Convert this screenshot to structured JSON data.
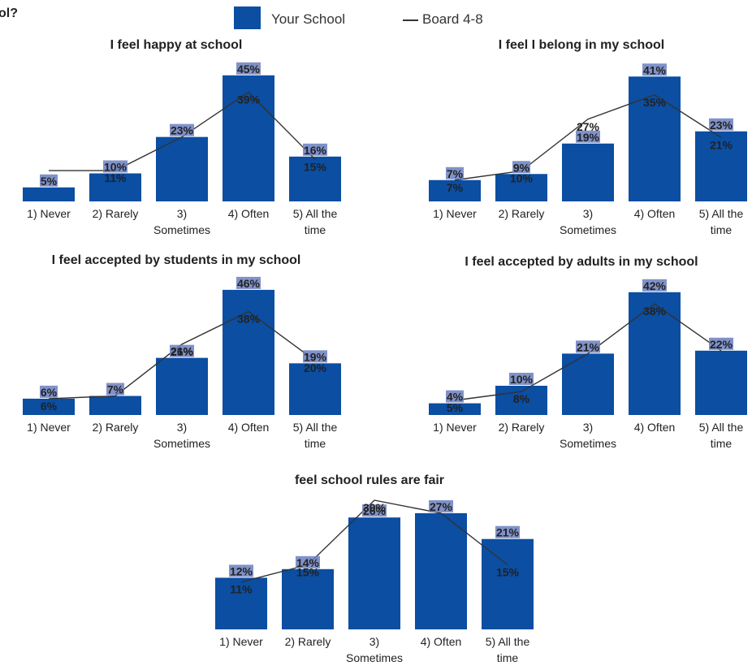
{
  "question_fragment": "ol?",
  "legend": {
    "school_label": "Your School",
    "board_label": "Board 4-8"
  },
  "colors": {
    "bar": "#0b4ea2",
    "label_box": "#6a7fbf",
    "board_line": "#333333",
    "text": "#222222"
  },
  "chart_data": [
    {
      "type": "bar",
      "title": "I feel happy at school",
      "categories": [
        "1) Never",
        "2) Rarely",
        "3) Sometimes",
        "4) Often",
        "5) All the time"
      ],
      "series": [
        {
          "name": "Your School",
          "type": "bar",
          "values": [
            5,
            10,
            23,
            45,
            16
          ],
          "labels": [
            "5%",
            "10%",
            "23%",
            "45%",
            "16%"
          ]
        },
        {
          "name": "Board 4-8",
          "type": "line",
          "values": [
            11,
            11,
            23,
            39,
            15
          ],
          "labels": [
            "",
            "11%",
            "",
            "39%",
            "15%"
          ]
        }
      ]
    },
    {
      "type": "bar",
      "title": "I feel I belong in my school",
      "categories": [
        "1) Never",
        "2) Rarely",
        "3) Sometimes",
        "4) Often",
        "5) All the time"
      ],
      "series": [
        {
          "name": "Your School",
          "type": "bar",
          "values": [
            7,
            9,
            19,
            41,
            23
          ],
          "labels": [
            "7%",
            "9%",
            "19%",
            "41%",
            "23%"
          ]
        },
        {
          "name": "Board 4-8",
          "type": "line",
          "values": [
            7,
            10,
            27,
            35,
            21
          ],
          "labels": [
            "7%",
            "10%",
            "27%",
            "35%",
            "21%"
          ]
        }
      ]
    },
    {
      "type": "bar",
      "title": "I feel accepted by students in my school",
      "categories": [
        "1) Never",
        "2) Rarely",
        "3) Sometimes",
        "4) Often",
        "5) All the time"
      ],
      "series": [
        {
          "name": "Your School",
          "type": "bar",
          "values": [
            6,
            7,
            21,
            46,
            19
          ],
          "labels": [
            "6%",
            "7%",
            "21%",
            "46%",
            "19%"
          ]
        },
        {
          "name": "Board 4-8",
          "type": "line",
          "values": [
            6,
            7,
            26,
            38,
            20
          ],
          "labels": [
            "6%",
            "",
            "26%",
            "38%",
            "20%"
          ]
        }
      ]
    },
    {
      "type": "bar",
      "title": "I feel accepted by adults in my school",
      "categories": [
        "1) Never",
        "2) Rarely",
        "3) Sometimes",
        "4) Often",
        "5) All the time"
      ],
      "series": [
        {
          "name": "Your School",
          "type": "bar",
          "values": [
            4,
            10,
            21,
            42,
            22
          ],
          "labels": [
            "4%",
            "10%",
            "21%",
            "42%",
            "22%"
          ]
        },
        {
          "name": "Board 4-8",
          "type": "line",
          "values": [
            5,
            8,
            21,
            38,
            22
          ],
          "labels": [
            "5%",
            "8%",
            "",
            "38%",
            ""
          ]
        }
      ]
    },
    {
      "type": "bar",
      "title": "feel school rules are fair",
      "categories": [
        "1) Never",
        "2) Rarely",
        "3) Sometimes",
        "4) Often",
        "5) All the time"
      ],
      "series": [
        {
          "name": "Your School",
          "type": "bar",
          "values": [
            12,
            14,
            26,
            27,
            21
          ],
          "labels": [
            "12%",
            "14%",
            "26%",
            "27%",
            "21%"
          ]
        },
        {
          "name": "Board 4-8",
          "type": "line",
          "values": [
            11,
            15,
            30,
            27,
            15
          ],
          "labels": [
            "11%",
            "15%",
            "30%",
            "",
            "15%"
          ]
        }
      ]
    }
  ]
}
